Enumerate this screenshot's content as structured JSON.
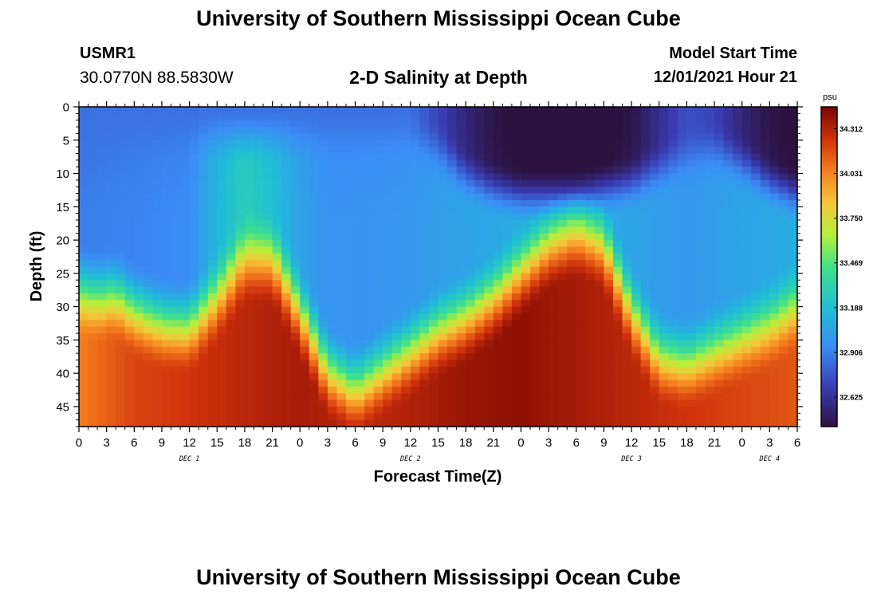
{
  "header": {
    "title": "University of Southern Mississippi Ocean Cube",
    "station_id": "USMR1",
    "coordinates": "30.0770N  88.5830W",
    "subtitle": "2-D Salinity at Depth",
    "model_start_label": "Model Start Time",
    "model_start_value": "12/01/2021 Hour 21"
  },
  "footer": {
    "title": "University of Southern Mississippi Ocean Cube"
  },
  "chart_data": {
    "type": "heatmap",
    "title": "2-D Salinity at Depth",
    "xlabel": "Forecast Time(Z)",
    "ylabel": "Depth (ft)",
    "x_range_hours": [
      0,
      78
    ],
    "y_range_ft": [
      0,
      48
    ],
    "x_tick_labels": [
      "0",
      "3",
      "6",
      "9",
      "12",
      "15",
      "18",
      "21",
      "0",
      "3",
      "6",
      "9",
      "12",
      "15",
      "18",
      "21",
      "0",
      "3",
      "6",
      "9",
      "12",
      "15",
      "18",
      "21",
      "0",
      "3",
      "6"
    ],
    "day_labels": [
      {
        "text": "DEC 1",
        "hour": 12
      },
      {
        "text": "DEC 2",
        "hour": 36
      },
      {
        "text": "DEC 3",
        "hour": 60
      },
      {
        "text": "DEC 4",
        "hour": 75
      }
    ],
    "y_ticks": [
      0,
      5,
      10,
      15,
      20,
      25,
      30,
      35,
      40,
      45
    ],
    "colorbar": {
      "unit": "psu",
      "range": [
        32.44,
        34.45
      ],
      "ticks": [
        34.312,
        34.031,
        33.75,
        33.469,
        33.188,
        32.906,
        32.625
      ],
      "tick_labels": [
        "34.312",
        "34.031",
        "33.750",
        "33.469",
        "33.188",
        "32.906",
        "32.625"
      ]
    },
    "halocline_depth_ft": {
      "hours": [
        0,
        2,
        4,
        6,
        9,
        12,
        15,
        18,
        21,
        24,
        27,
        30,
        33,
        36,
        39,
        42,
        45,
        48,
        51,
        54,
        57,
        60,
        63,
        66,
        69,
        72,
        75,
        78
      ],
      "values": [
        23,
        24,
        23.5,
        26,
        28,
        28.5,
        24,
        18,
        18,
        26,
        35,
        38,
        35,
        32,
        29,
        27,
        24,
        20,
        16,
        14,
        16,
        26,
        33,
        34,
        32,
        30,
        28,
        25
      ]
    },
    "fresh_surface_layer": {
      "hours": [
        0,
        12,
        24,
        30,
        36,
        39,
        42,
        45,
        48,
        51,
        54,
        57,
        60,
        63,
        66,
        69,
        72,
        75,
        78
      ],
      "depth_ft": [
        0,
        0,
        0,
        0,
        0,
        2,
        6,
        8,
        9,
        9,
        9,
        8,
        7,
        5,
        3,
        2,
        4,
        7,
        9
      ],
      "min_psu": [
        32.9,
        32.9,
        32.9,
        32.9,
        32.9,
        32.75,
        32.6,
        32.5,
        32.45,
        32.45,
        32.45,
        32.45,
        32.5,
        32.65,
        32.8,
        32.75,
        32.6,
        32.5,
        32.45
      ]
    },
    "mid_column_psu": {
      "hours": [
        0,
        6,
        12,
        15,
        18,
        21,
        24,
        27,
        30,
        36,
        42,
        48,
        54,
        60,
        66,
        72,
        78
      ],
      "values": [
        32.9,
        32.92,
        32.95,
        33.15,
        33.3,
        33.2,
        33.05,
        32.98,
        32.98,
        33.0,
        33.05,
        33.1,
        33.1,
        33.05,
        33.0,
        33.05,
        33.1
      ]
    },
    "bottom_psu": {
      "hours": [
        0,
        6,
        12,
        18,
        24,
        30,
        36,
        42,
        48,
        54,
        60,
        66,
        72,
        78
      ],
      "values": [
        34.05,
        34.2,
        34.25,
        34.3,
        34.35,
        34.3,
        34.32,
        34.38,
        34.4,
        34.35,
        34.3,
        34.25,
        34.2,
        34.15
      ]
    }
  }
}
